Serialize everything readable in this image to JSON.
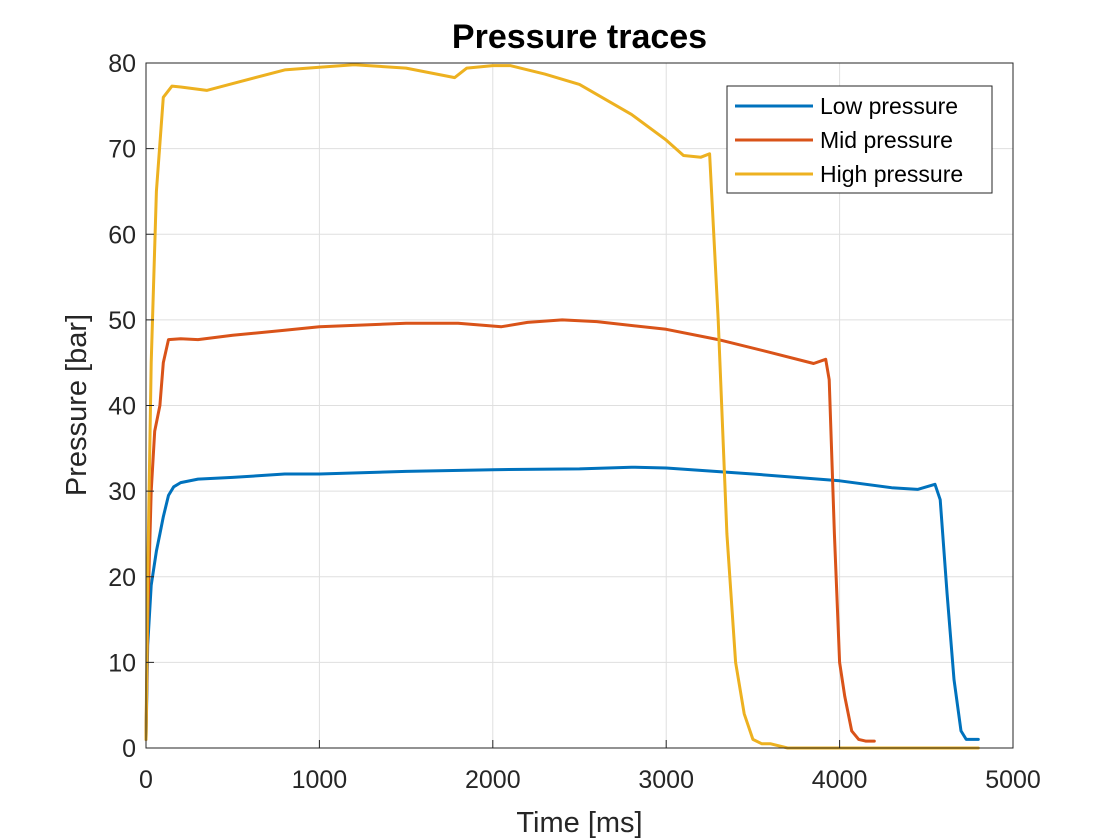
{
  "chart_data": {
    "type": "line",
    "title": "Pressure traces",
    "xlabel": "Time [ms]",
    "ylabel": "Pressure [bar]",
    "xlim": [
      0,
      5000
    ],
    "ylim": [
      0,
      80
    ],
    "xticks": [
      0,
      1000,
      2000,
      3000,
      4000,
      5000
    ],
    "yticks": [
      0,
      10,
      20,
      30,
      40,
      50,
      60,
      70,
      80
    ],
    "grid": true,
    "legend_position": "top-right",
    "series": [
      {
        "name": "Low pressure",
        "color": "#0072BD",
        "x": [
          0,
          10,
          30,
          60,
          80,
          100,
          130,
          160,
          200,
          300,
          500,
          800,
          1000,
          1500,
          2000,
          2500,
          2800,
          3000,
          3500,
          4000,
          4300,
          4450,
          4550,
          4580,
          4620,
          4660,
          4700,
          4730,
          4750,
          4800
        ],
        "y": [
          1,
          12,
          19,
          23,
          25,
          27,
          29.5,
          30.5,
          31,
          31.4,
          31.6,
          32,
          32,
          32.3,
          32.5,
          32.6,
          32.8,
          32.7,
          32,
          31.2,
          30.4,
          30.2,
          30.8,
          29,
          18,
          8,
          2,
          1,
          1,
          1
        ]
      },
      {
        "name": "Mid pressure",
        "color": "#D95319",
        "x": [
          0,
          10,
          30,
          50,
          80,
          100,
          130,
          200,
          300,
          500,
          800,
          1000,
          1500,
          1800,
          2050,
          2200,
          2400,
          2600,
          3000,
          3300,
          3600,
          3850,
          3920,
          3940,
          3970,
          4000,
          4030,
          4070,
          4110,
          4150,
          4200
        ],
        "y": [
          1,
          15,
          30,
          37,
          40,
          45,
          47.7,
          47.8,
          47.7,
          48.2,
          48.8,
          49.2,
          49.6,
          49.6,
          49.2,
          49.7,
          50,
          49.8,
          48.9,
          47.7,
          46.2,
          44.9,
          45.4,
          43,
          25,
          10,
          6,
          2,
          1,
          0.8,
          0.8
        ]
      },
      {
        "name": "High pressure",
        "color": "#EDB120",
        "x": [
          0,
          10,
          30,
          60,
          100,
          150,
          200,
          350,
          500,
          800,
          1000,
          1200,
          1500,
          1780,
          1850,
          2000,
          2100,
          2300,
          2500,
          2800,
          3000,
          3100,
          3200,
          3250,
          3300,
          3350,
          3400,
          3450,
          3500,
          3550,
          3600,
          3700,
          4000,
          4500,
          4800
        ],
        "y": [
          1,
          20,
          45,
          65,
          76,
          77.3,
          77.2,
          76.8,
          77.6,
          79.2,
          79.5,
          79.8,
          79.4,
          78.3,
          79.4,
          79.7,
          79.7,
          78.7,
          77.5,
          74,
          71,
          69.2,
          69,
          69.4,
          50,
          25,
          10,
          4,
          1,
          0.5,
          0.5,
          0,
          0,
          0,
          0
        ]
      }
    ]
  }
}
